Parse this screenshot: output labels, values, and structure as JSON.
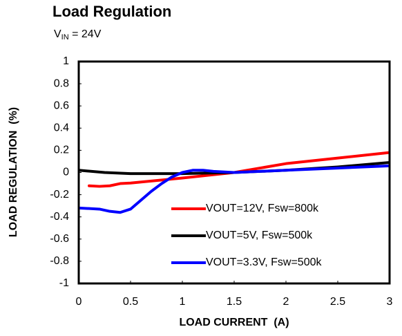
{
  "chart_data": {
    "type": "line",
    "title": "Load Regulation",
    "subtitle": {
      "base": "V",
      "sub": "IN",
      "rest": " = 24V"
    },
    "xlabel": "LOAD CURRENT  (A)",
    "ylabel": "LOAD REGULATION  (%)",
    "xlim": [
      0,
      3
    ],
    "xticks": [
      0,
      0.5,
      1,
      1.5,
      2,
      2.5,
      3
    ],
    "ylim": [
      -1,
      1
    ],
    "yticks": [
      1,
      0.8,
      0.6,
      0.4,
      0.2,
      0,
      -0.2,
      -0.4,
      -0.6,
      -0.8,
      -1
    ],
    "grid": false,
    "legend": "lower-right",
    "series": [
      {
        "name": "VOUT=12V, Fsw=800k",
        "color": "#ff0000",
        "x": [
          0.1,
          0.2,
          0.3,
          0.4,
          0.5,
          1.0,
          1.5,
          2.0,
          2.5,
          3.0
        ],
        "values": [
          -0.12,
          -0.125,
          -0.12,
          -0.1,
          -0.095,
          -0.05,
          0.0,
          0.08,
          0.13,
          0.18
        ]
      },
      {
        "name": "VOUT=5V, Fsw=500k",
        "color": "#000000",
        "x": [
          0,
          0.25,
          0.5,
          1.0,
          1.5,
          2.0,
          2.5,
          3.0
        ],
        "values": [
          0.02,
          0.0,
          -0.01,
          -0.01,
          0.0,
          0.02,
          0.05,
          0.09
        ]
      },
      {
        "name": "VOUT=3.3V, Fsw=500k",
        "color": "#0000ff",
        "x": [
          0,
          0.2,
          0.3,
          0.4,
          0.5,
          0.6,
          0.7,
          0.8,
          0.9,
          1.0,
          1.1,
          1.2,
          1.3,
          1.5,
          2.0,
          2.5,
          3.0
        ],
        "values": [
          -0.32,
          -0.33,
          -0.35,
          -0.36,
          -0.33,
          -0.25,
          -0.17,
          -0.1,
          -0.04,
          0.0,
          0.02,
          0.02,
          0.01,
          0.0,
          0.02,
          0.04,
          0.06
        ]
      }
    ]
  }
}
